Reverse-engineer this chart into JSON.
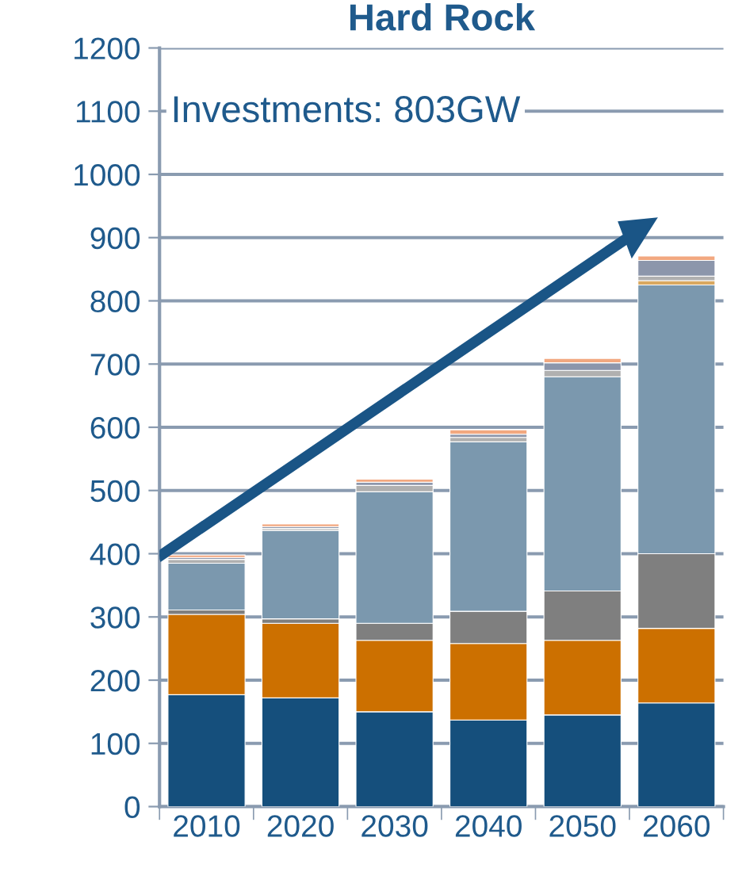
{
  "chart_data": {
    "type": "bar",
    "title": "Hard Rock",
    "stacked": true,
    "categories": [
      "2010",
      "2020",
      "2030",
      "2040",
      "2050",
      "2060"
    ],
    "series": [
      {
        "color": "#154f7c",
        "values": [
          177,
          172,
          150,
          137,
          145,
          164
        ]
      },
      {
        "color": "#cc7000",
        "values": [
          127,
          118,
          113,
          121,
          118,
          118
        ]
      },
      {
        "color": "#7f7f7f",
        "values": [
          7,
          7,
          27,
          51,
          78,
          118
        ]
      },
      {
        "color": "#7b98ae",
        "values": [
          74,
          140,
          208,
          268,
          339,
          425
        ]
      },
      {
        "color": "#d9a860",
        "values": [
          0,
          0,
          0,
          0,
          0,
          7
        ]
      },
      {
        "color": "#b0b0b0",
        "values": [
          6,
          3,
          10,
          7,
          10,
          7
        ]
      },
      {
        "color": "#8c96ab",
        "values": [
          3,
          3,
          5,
          5,
          12,
          25
        ]
      },
      {
        "color": "#f2a880",
        "values": [
          4,
          4,
          5,
          7,
          7,
          7
        ]
      }
    ],
    "ylim": [
      0,
      1200
    ],
    "yticks": [
      0,
      100,
      200,
      300,
      400,
      500,
      600,
      700,
      800,
      900,
      1000,
      1100,
      1200
    ],
    "grid": "y",
    "legend": false,
    "annotations": [
      "Investments: 803GW"
    ]
  }
}
